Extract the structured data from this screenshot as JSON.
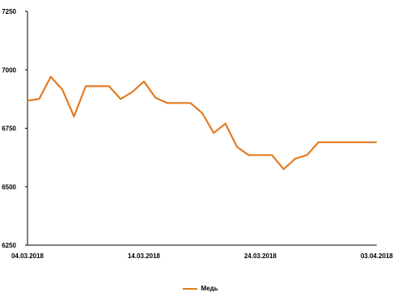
{
  "chart_data": {
    "type": "line",
    "title": "",
    "xlabel": "",
    "ylabel": "",
    "ylim": [
      6250,
      7250
    ],
    "y_ticks": [
      6250,
      6500,
      6750,
      7000,
      7250
    ],
    "y_tick_labels": [
      "6250",
      "6500",
      "6750",
      "7000",
      "7250"
    ],
    "x_tick_labels": [
      "04.03.2018",
      "14.03.2018",
      "24.03.2018",
      "03.04.2018"
    ],
    "x_tick_indices": [
      0,
      10,
      20,
      30
    ],
    "x_range": [
      0,
      30
    ],
    "grid": false,
    "legend_position": "bottom",
    "series": [
      {
        "name": "Медь",
        "color": "#E37B21",
        "x": [
          0,
          1,
          2,
          3,
          4,
          5,
          6,
          7,
          8,
          9,
          10,
          11,
          12,
          13,
          14,
          15,
          16,
          17,
          18,
          19,
          20,
          21,
          22,
          23,
          24,
          25,
          26,
          27,
          28,
          29,
          30
        ],
        "values": [
          6868,
          6875,
          6970,
          6915,
          6800,
          6930,
          6930,
          6930,
          6875,
          6905,
          6950,
          6880,
          6858,
          6858,
          6858,
          6815,
          6730,
          6770,
          6670,
          6635,
          6635,
          6635,
          6575,
          6620,
          6635,
          6690,
          6690,
          6690,
          6690,
          6690,
          6690
        ]
      }
    ]
  }
}
